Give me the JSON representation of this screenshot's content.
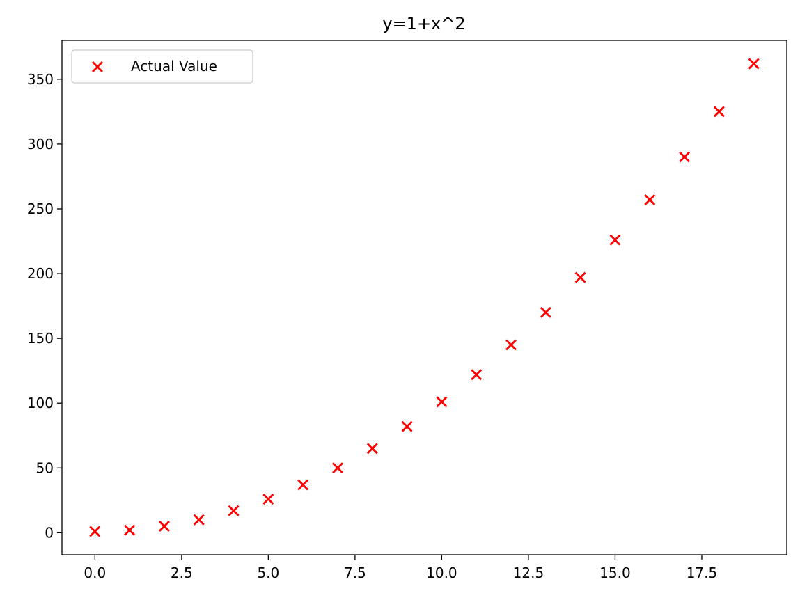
{
  "chart_data": {
    "type": "scatter",
    "title": "y=1+x^2",
    "xlabel": "",
    "ylabel": "",
    "xlim": [
      -0.95,
      19.95
    ],
    "ylim": [
      -17,
      380
    ],
    "xticks": [
      0.0,
      2.5,
      5.0,
      7.5,
      10.0,
      12.5,
      15.0,
      17.5
    ],
    "xtick_labels": [
      "0.0",
      "2.5",
      "5.0",
      "7.5",
      "10.0",
      "12.5",
      "15.0",
      "17.5"
    ],
    "yticks": [
      0,
      50,
      100,
      150,
      200,
      250,
      300,
      350
    ],
    "ytick_labels": [
      "0",
      "50",
      "100",
      "150",
      "200",
      "250",
      "300",
      "350"
    ],
    "grid": false,
    "legend_position": "upper-left",
    "series": [
      {
        "name": "Actual Value",
        "marker": "x",
        "color": "#ff0000",
        "x": [
          0,
          1,
          2,
          3,
          4,
          5,
          6,
          7,
          8,
          9,
          10,
          11,
          12,
          13,
          14,
          15,
          16,
          17,
          18,
          19
        ],
        "y": [
          1,
          2,
          5,
          10,
          17,
          26,
          37,
          50,
          65,
          82,
          101,
          122,
          145,
          170,
          197,
          226,
          257,
          290,
          325,
          362
        ]
      }
    ]
  }
}
